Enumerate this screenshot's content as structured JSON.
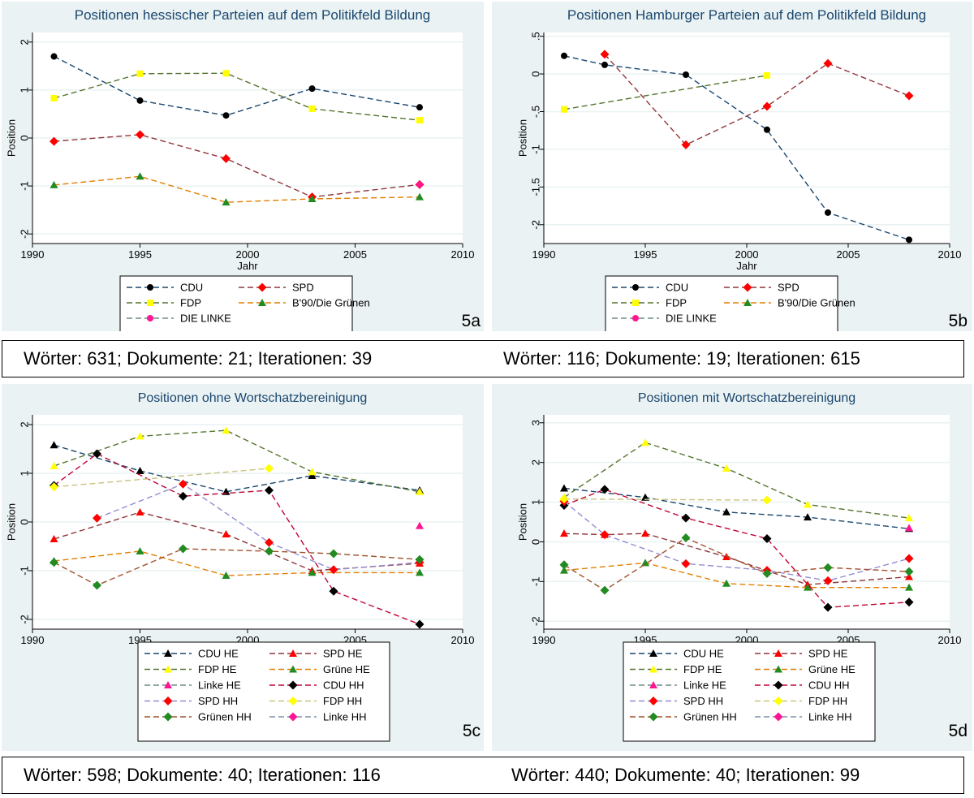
{
  "chart_data": [
    {
      "id": "5a",
      "type": "line",
      "panel_label": "5a",
      "title": "Positionen hessischer Parteien auf dem Politikfeld Bildung",
      "xlabel": "Jahr",
      "ylabel": "Position",
      "xlim": [
        1990,
        2010
      ],
      "ylim": [
        -2.2,
        2.2
      ],
      "xticks": [
        1990,
        1995,
        2000,
        2005,
        2010
      ],
      "yticks": [
        {
          "v": 2,
          "l": "2"
        },
        {
          "v": 1,
          "l": "1"
        },
        {
          "v": 0,
          "l": "0"
        },
        {
          "v": -1,
          "l": "-1"
        },
        {
          "v": -2,
          "l": "-2"
        }
      ],
      "legend_columns": 2,
      "series": [
        {
          "name": "CDU",
          "color": "#1a476f",
          "marker": "circle",
          "marker_color": "#000000",
          "points": [
            [
              1991,
              1.7
            ],
            [
              1995,
              0.78
            ],
            [
              1999,
              0.47
            ],
            [
              2003,
              1.03
            ],
            [
              2008,
              0.64
            ]
          ]
        },
        {
          "name": "SPD",
          "color": "#90353b",
          "marker": "diamond",
          "marker_color": "#ff0000",
          "points": [
            [
              1991,
              -0.07
            ],
            [
              1995,
              0.07
            ],
            [
              1999,
              -0.43
            ],
            [
              2003,
              -1.23
            ],
            [
              2008,
              -0.97
            ]
          ]
        },
        {
          "name": "FDP",
          "color": "#55752f",
          "marker": "square",
          "marker_color": "#ffff00",
          "points": [
            [
              1991,
              0.83
            ],
            [
              1995,
              1.34
            ],
            [
              1999,
              1.35
            ],
            [
              2003,
              0.61
            ],
            [
              2008,
              0.37
            ]
          ]
        },
        {
          "name": "B'90/Die Grünen",
          "color": "#e37e00",
          "marker": "triangle",
          "marker_color": "#228b22",
          "points": [
            [
              1991,
              -0.98
            ],
            [
              1995,
              -0.8
            ],
            [
              1999,
              -1.34
            ],
            [
              2003,
              -1.27
            ],
            [
              2008,
              -1.23
            ]
          ]
        },
        {
          "name": "DIE LINKE",
          "color": "#6e8e84",
          "marker": "circle",
          "marker_color": "#ff1493",
          "points": [
            [
              2008,
              -0.97
            ]
          ]
        }
      ]
    },
    {
      "id": "5b",
      "type": "line",
      "panel_label": "5b",
      "title": "Positionen Hamburger Parteien auf dem Politikfeld Bildung",
      "xlabel": "Jahr",
      "ylabel": "Position",
      "xlim": [
        1990,
        2010
      ],
      "ylim": [
        -2.25,
        0.55
      ],
      "xticks": [
        1990,
        1995,
        2000,
        2005,
        2010
      ],
      "yticks": [
        {
          "v": 0.5,
          "l": ".5"
        },
        {
          "v": 0,
          "l": "0"
        },
        {
          "v": -0.5,
          "l": "-.5"
        },
        {
          "v": -1,
          "l": "-1"
        },
        {
          "v": -1.5,
          "l": "-1.5"
        },
        {
          "v": -2,
          "l": "-2"
        }
      ],
      "legend_columns": 2,
      "series": [
        {
          "name": "CDU",
          "color": "#1a476f",
          "marker": "circle",
          "marker_color": "#000000",
          "points": [
            [
              1991,
              0.24
            ],
            [
              1993,
              0.12
            ],
            [
              1997,
              -0.01
            ],
            [
              2001,
              -0.74
            ],
            [
              2004,
              -1.84
            ],
            [
              2008,
              -2.2
            ]
          ]
        },
        {
          "name": "SPD",
          "color": "#90353b",
          "marker": "diamond",
          "marker_color": "#ff0000",
          "points": [
            [
              1993,
              0.26
            ],
            [
              1997,
              -0.94
            ],
            [
              2001,
              -0.43
            ],
            [
              2004,
              0.14
            ],
            [
              2008,
              -0.29
            ]
          ]
        },
        {
          "name": "FDP",
          "color": "#55752f",
          "marker": "square",
          "marker_color": "#ffff00",
          "points": [
            [
              1991,
              -0.47
            ],
            [
              2001,
              -0.02
            ]
          ]
        },
        {
          "name": "B'90/Die Grünen",
          "color": "#e37e00",
          "marker": "triangle",
          "marker_color": "#228b22",
          "points": []
        },
        {
          "name": "DIE LINKE",
          "color": "#6e8e84",
          "marker": "circle",
          "marker_color": "#ff1493",
          "points": []
        }
      ]
    },
    {
      "id": "5c",
      "type": "line",
      "panel_label": "5c",
      "title": "Positionen ohne Wortschatzbereinigung",
      "xlabel": "Jahr",
      "ylabel": "Position",
      "xlim": [
        1990,
        2010
      ],
      "ylim": [
        -2.2,
        2.2
      ],
      "xticks": [
        1990,
        1995,
        2000,
        2005,
        2010
      ],
      "yticks": [
        {
          "v": 2,
          "l": "2"
        },
        {
          "v": 1,
          "l": "1"
        },
        {
          "v": 0,
          "l": "0"
        },
        {
          "v": -1,
          "l": "-1"
        },
        {
          "v": -2,
          "l": "-2"
        }
      ],
      "legend_columns": 2,
      "series": [
        {
          "name": "CDU HE",
          "color": "#1a476f",
          "marker": "triangle",
          "marker_color": "#000000",
          "points": [
            [
              1991,
              1.58
            ],
            [
              1995,
              1.05
            ],
            [
              1999,
              0.62
            ],
            [
              2003,
              0.95
            ],
            [
              2008,
              0.65
            ]
          ]
        },
        {
          "name": "SPD HE",
          "color": "#90353b",
          "marker": "triangle",
          "marker_color": "#ff0000",
          "points": [
            [
              1991,
              -0.35
            ],
            [
              1995,
              0.2
            ],
            [
              1999,
              -0.25
            ],
            [
              2003,
              -1.0
            ],
            [
              2008,
              -0.85
            ]
          ]
        },
        {
          "name": "FDP HE",
          "color": "#55752f",
          "marker": "triangle",
          "marker_color": "#ffff00",
          "points": [
            [
              1991,
              1.15
            ],
            [
              1995,
              1.76
            ],
            [
              1999,
              1.88
            ],
            [
              2003,
              1.03
            ],
            [
              2008,
              0.62
            ]
          ]
        },
        {
          "name": "Grüne HE",
          "color": "#e37e00",
          "marker": "triangle",
          "marker_color": "#228b22",
          "points": [
            [
              1991,
              -0.8
            ],
            [
              1995,
              -0.6
            ],
            [
              1999,
              -1.1
            ],
            [
              2003,
              -1.04
            ],
            [
              2008,
              -1.04
            ]
          ]
        },
        {
          "name": "Linke HE",
          "color": "#6e8e84",
          "marker": "triangle",
          "marker_color": "#ff1493",
          "points": [
            [
              2008,
              -0.08
            ]
          ]
        },
        {
          "name": "CDU HH",
          "color": "#c10534",
          "marker": "diamond",
          "marker_color": "#000000",
          "points": [
            [
              1991,
              0.75
            ],
            [
              1993,
              1.4
            ],
            [
              1997,
              0.53
            ],
            [
              2001,
              0.65
            ],
            [
              2004,
              -1.42
            ],
            [
              2008,
              -2.1
            ]
          ]
        },
        {
          "name": "SPD HH",
          "color": "#938dd2",
          "marker": "diamond",
          "marker_color": "#ff0000",
          "points": [
            [
              1993,
              0.08
            ],
            [
              1997,
              0.78
            ],
            [
              2001,
              -0.42
            ],
            [
              2004,
              -0.98
            ],
            [
              2008,
              -0.83
            ]
          ]
        },
        {
          "name": "FDP HH",
          "color": "#cac27e",
          "marker": "diamond",
          "marker_color": "#ffff00",
          "points": [
            [
              1991,
              0.72
            ],
            [
              2001,
              1.1
            ]
          ]
        },
        {
          "name": "Grünen HH",
          "color": "#a0522d",
          "marker": "diamond",
          "marker_color": "#228b22",
          "points": [
            [
              1991,
              -0.83
            ],
            [
              1993,
              -1.3
            ],
            [
              1997,
              -0.55
            ],
            [
              2001,
              -0.6
            ],
            [
              2004,
              -0.65
            ],
            [
              2008,
              -0.77
            ]
          ]
        },
        {
          "name": "Linke HH",
          "color": "#7b92a8",
          "marker": "diamond",
          "marker_color": "#ff1493",
          "points": []
        }
      ]
    },
    {
      "id": "5d",
      "type": "line",
      "panel_label": "5d",
      "title": "Positionen mit Wortschatzbereinigung",
      "xlabel": "Jahr",
      "ylabel": "Position",
      "xlim": [
        1990,
        2010
      ],
      "ylim": [
        -2.2,
        3.2
      ],
      "xticks": [
        1990,
        1995,
        2000,
        2005,
        2010
      ],
      "yticks": [
        {
          "v": 3,
          "l": "3"
        },
        {
          "v": 2,
          "l": "2"
        },
        {
          "v": 1,
          "l": "1"
        },
        {
          "v": 0,
          "l": "0"
        },
        {
          "v": -1,
          "l": "-1"
        },
        {
          "v": -2,
          "l": "-2"
        }
      ],
      "legend_columns": 2,
      "series": [
        {
          "name": "CDU HE",
          "color": "#1a476f",
          "marker": "triangle",
          "marker_color": "#000000",
          "points": [
            [
              1991,
              1.35
            ],
            [
              1995,
              1.12
            ],
            [
              1999,
              0.75
            ],
            [
              2003,
              0.62
            ],
            [
              2008,
              0.33
            ]
          ]
        },
        {
          "name": "SPD HE",
          "color": "#90353b",
          "marker": "triangle",
          "marker_color": "#ff0000",
          "points": [
            [
              1991,
              0.21
            ],
            [
              1993,
              0.18
            ],
            [
              1995,
              0.21
            ],
            [
              1999,
              -0.38
            ],
            [
              2003,
              -1.08
            ],
            [
              2008,
              -0.88
            ]
          ]
        },
        {
          "name": "FDP HE",
          "color": "#55752f",
          "marker": "triangle",
          "marker_color": "#ffff00",
          "points": [
            [
              1991,
              1.12
            ],
            [
              1995,
              2.5
            ],
            [
              1999,
              1.85
            ],
            [
              2003,
              0.94
            ],
            [
              2008,
              0.6
            ]
          ]
        },
        {
          "name": "Grüne HE",
          "color": "#e37e00",
          "marker": "triangle",
          "marker_color": "#228b22",
          "points": [
            [
              1991,
              -0.72
            ],
            [
              1995,
              -0.53
            ],
            [
              1999,
              -1.05
            ],
            [
              2003,
              -1.15
            ],
            [
              2008,
              -1.15
            ]
          ]
        },
        {
          "name": "Linke HE",
          "color": "#6e8e84",
          "marker": "triangle",
          "marker_color": "#ff1493",
          "points": [
            [
              2008,
              0.35
            ]
          ]
        },
        {
          "name": "CDU HH",
          "color": "#c10534",
          "marker": "diamond",
          "marker_color": "#000000",
          "points": [
            [
              1991,
              0.92
            ],
            [
              1993,
              1.32
            ],
            [
              1997,
              0.6
            ],
            [
              2001,
              0.08
            ],
            [
              2004,
              -1.65
            ],
            [
              2008,
              -1.52
            ]
          ]
        },
        {
          "name": "SPD HH",
          "color": "#938dd2",
          "marker": "diamond",
          "marker_color": "#ff0000",
          "points": [
            [
              1991,
              1.02
            ],
            [
              1993,
              0.18
            ],
            [
              1997,
              -0.55
            ],
            [
              2001,
              -0.72
            ],
            [
              2004,
              -0.98
            ],
            [
              2008,
              -0.42
            ]
          ]
        },
        {
          "name": "FDP HH",
          "color": "#cac27e",
          "marker": "diamond",
          "marker_color": "#ffff00",
          "points": [
            [
              1991,
              1.08
            ],
            [
              2001,
              1.05
            ]
          ]
        },
        {
          "name": "Grünen HH",
          "color": "#a0522d",
          "marker": "diamond",
          "marker_color": "#228b22",
          "points": [
            [
              1991,
              -0.58
            ],
            [
              1993,
              -1.22
            ],
            [
              1997,
              0.1
            ],
            [
              2001,
              -0.8
            ],
            [
              2004,
              -0.65
            ],
            [
              2008,
              -0.75
            ]
          ]
        },
        {
          "name": "Linke HH",
          "color": "#7b92a8",
          "marker": "diamond",
          "marker_color": "#ff1493",
          "points": []
        }
      ]
    }
  ],
  "stats": {
    "row1_left": "Wörter: 631; Dokumente: 21; Iterationen: 39",
    "row1_right": "Wörter: 116; Dokumente: 19; Iterationen: 615",
    "row2_left": "Wörter: 598; Dokumente: 40; Iterationen: 116",
    "row2_right": "Wörter: 440; Dokumente: 40; Iterationen: 99"
  }
}
